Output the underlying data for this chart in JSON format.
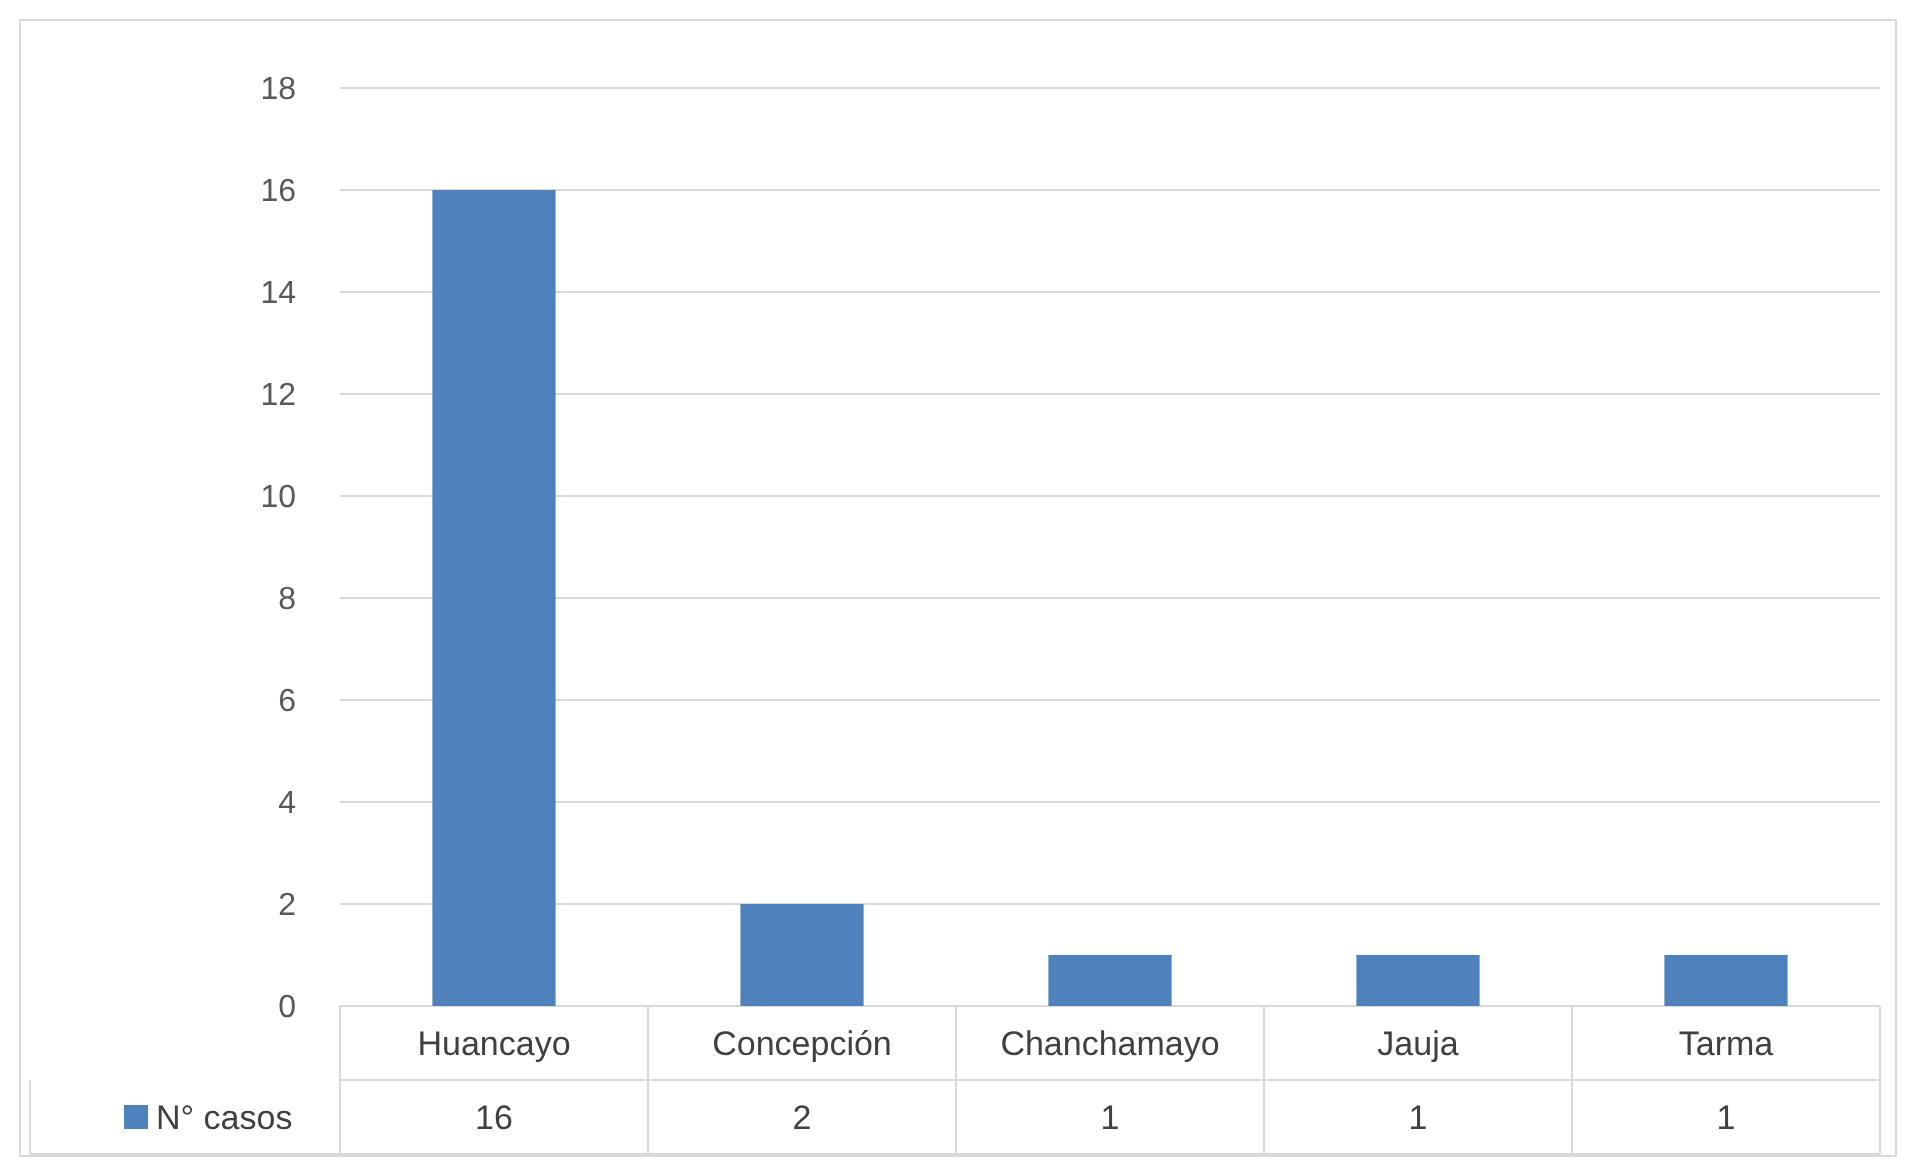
{
  "chart_data": {
    "type": "bar",
    "categories": [
      "Huancayo",
      "Concepción",
      "Chanchamayo",
      "Jauja",
      "Tarma"
    ],
    "series": [
      {
        "name": "N° casos",
        "color": "#4f81bd",
        "values": [
          16,
          2,
          1,
          1,
          1
        ]
      }
    ],
    "ylim": [
      0,
      18
    ],
    "yticks": [
      0,
      2,
      4,
      6,
      8,
      10,
      12,
      14,
      16,
      18
    ],
    "grid": "y",
    "data_labels": true,
    "legend": "bottom"
  }
}
